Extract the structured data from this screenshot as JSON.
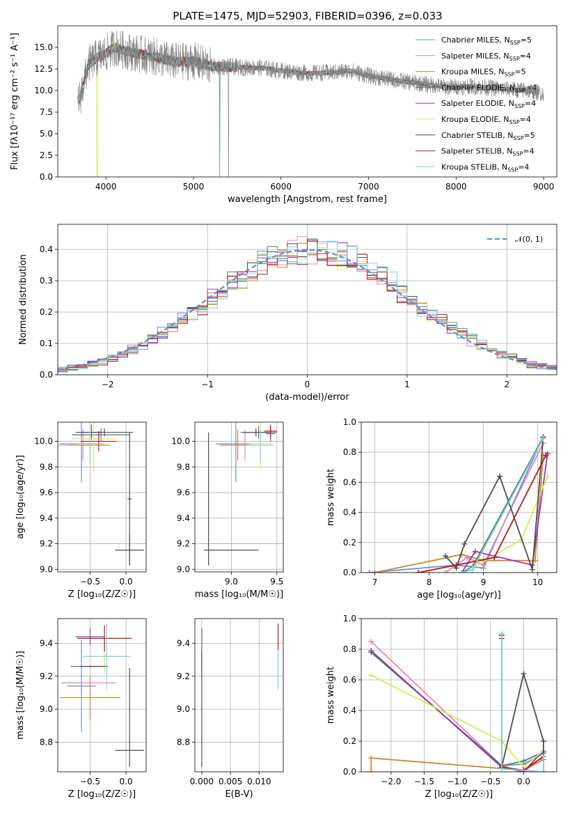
{
  "figure": {
    "title": "PLATE=1475, MJD=52903, FIBERID=0396, z=0.033"
  },
  "colors": {
    "Chabrier MILES": "#6a8fd8",
    "Salpeter MILES": "#e984b4",
    "Kroupa MILES": "#d8812d",
    "Chabrier ELODIE": "#4b7f6a",
    "Salpeter ELODIE": "#9a32b4",
    "Kroupa ELODIE": "#d4ec5a",
    "Chabrier STELIB": "#4d4d4d",
    "Salpeter STELIB": "#b41a1a",
    "Kroupa STELIB": "#7fd6de",
    "data": "#808080",
    "normal": "#5b8fd6"
  },
  "chart_data": [
    {
      "id": "spectrum",
      "type": "line",
      "xlabel": "wavelength [Angstrom, rest frame]",
      "ylabel": "Flux [fλ10⁻¹⁷ erg cm⁻² s⁻¹ A⁻¹]",
      "xlim": [
        3450,
        9150
      ],
      "ylim": [
        0,
        17.5
      ],
      "xticks": [
        4000,
        5000,
        6000,
        7000,
        8000,
        9000
      ],
      "yticks": [
        0.0,
        2.5,
        5.0,
        7.5,
        10.0,
        12.5,
        15.0
      ],
      "ytick_labels": [
        "0.0",
        "2.5",
        "5.0",
        "7.5",
        "10.0",
        "12.5",
        "15.0"
      ],
      "legend_position": "top-right",
      "series": [
        {
          "name": "Chabrier MILES, N",
          "sub": "SSP",
          "suffix": "=5",
          "key": "Chabrier MILES"
        },
        {
          "name": "Salpeter MILES, N",
          "sub": "SSP",
          "suffix": "=4",
          "key": "Salpeter MILES"
        },
        {
          "name": "Kroupa MILES, N",
          "sub": "SSP",
          "suffix": "=5",
          "key": "Kroupa MILES"
        },
        {
          "name": "Chabrier ELODIE, N",
          "sub": "SSP",
          "suffix": "=4",
          "key": "Chabrier ELODIE"
        },
        {
          "name": "Salpeter ELODIE, N",
          "sub": "SSP",
          "suffix": "=4",
          "key": "Salpeter ELODIE"
        },
        {
          "name": "Kroupa ELODIE, N",
          "sub": "SSP",
          "suffix": "=4",
          "key": "Kroupa ELODIE"
        },
        {
          "name": "Chabrier STELIB, N",
          "sub": "SSP",
          "suffix": "=5",
          "key": "Chabrier STELIB"
        },
        {
          "name": "Salpeter STELIB, N",
          "sub": "SSP",
          "suffix": "=4",
          "key": "Salpeter STELIB"
        },
        {
          "name": "Kroupa STELIB, N",
          "sub": "SSP",
          "suffix": "=4",
          "key": "Kroupa STELIB"
        }
      ],
      "continuum": {
        "x": [
          3700,
          3800,
          3900,
          4000,
          4100,
          4300,
          4500,
          4800,
          5000,
          5200,
          5500,
          5800,
          6000,
          6300,
          6600,
          6800,
          7000,
          7300,
          7600,
          7900,
          8200,
          8500,
          8800,
          9000
        ],
        "y": [
          9.0,
          13.0,
          13.8,
          14.3,
          15.0,
          14.4,
          14.0,
          13.3,
          13.4,
          12.8,
          12.7,
          12.6,
          12.3,
          12.0,
          12.1,
          12.3,
          11.7,
          11.2,
          10.8,
          10.4,
          10.5,
          10.2,
          10.0,
          9.7
        ]
      }
    },
    {
      "id": "residuals",
      "type": "histogram",
      "xlabel": "(data-model)/error",
      "ylabel": "Normed distribution",
      "xlim": [
        -2.5,
        2.5
      ],
      "ylim": [
        0,
        0.48
      ],
      "xticks": [
        -2,
        -1,
        0,
        1,
        2
      ],
      "xtick_labels": [
        "−2",
        "−1",
        "0",
        "1",
        "2"
      ],
      "yticks": [
        0.0,
        0.1,
        0.2,
        0.3,
        0.4
      ],
      "ytick_labels": [
        "0.0",
        "0.1",
        "0.2",
        "0.3",
        "0.4"
      ],
      "bin_width": 0.1,
      "legend_position": "top-right",
      "normal_label": "𝒩(0, 1)"
    },
    {
      "id": "age-vs-Z",
      "type": "errorbar",
      "xlabel": "Z [log₁₀(Z/Z☉)]",
      "ylabel": "age  [log₁₀(age/yr)]",
      "xlim": [
        -0.95,
        0.28
      ],
      "ylim": [
        8.98,
        10.15
      ],
      "xticks": [
        -0.5,
        0.0
      ],
      "xtick_labels": [
        "−0.5",
        "0.0"
      ],
      "yticks": [
        9.0,
        9.2,
        9.4,
        9.6,
        9.8,
        10.0
      ],
      "ytick_labels": [
        "9.0",
        "9.2",
        "9.4",
        "9.6",
        "9.8",
        "10.0"
      ],
      "points": [
        {
          "key": "Chabrier MILES",
          "x": -0.62,
          "xerr": 0.3,
          "y": 9.98,
          "yerr": 0.3
        },
        {
          "key": "Salpeter MILES",
          "x": -0.6,
          "xerr": 0.35,
          "y": 9.97,
          "yerr": 0.12
        },
        {
          "key": "Kroupa MILES",
          "x": -0.5,
          "xerr": 0.28,
          "y": 9.97,
          "yerr": 0.12
        },
        {
          "key": "Chabrier ELODIE",
          "x": -0.35,
          "xerr": 0.4,
          "y": 10.05,
          "yerr": 0.05
        },
        {
          "key": "Salpeter ELODIE",
          "x": -0.48,
          "xerr": 0.15,
          "y": 10.07,
          "yerr": 0.06
        },
        {
          "key": "Kroupa ELODIE",
          "x": -0.45,
          "xerr": 0.3,
          "y": 10.02,
          "yerr": 0.25
        },
        {
          "key": "Chabrier STELIB",
          "x": -0.3,
          "xerr": 0.4,
          "y": 10.07,
          "yerr": 0.03
        },
        {
          "key": "Salpeter STELIB",
          "x": -0.38,
          "xerr": 0.25,
          "y": 10.0,
          "yerr": 0.08
        },
        {
          "key": "Kroupa STELIB",
          "x": -0.5,
          "xerr": 0.2,
          "y": 9.98,
          "yerr": 0.18
        },
        {
          "key": "Chabrier STELIB",
          "x": 0.05,
          "xerr": 0.2,
          "y": 9.15,
          "yerr": 0.12
        },
        {
          "key": "Chabrier STELIB",
          "x": 0.05,
          "xerr": 0.03,
          "y": 9.55,
          "yerr": 0.52
        }
      ]
    },
    {
      "id": "age-vs-mass",
      "type": "errorbar",
      "xlabel": "mass [log₁₀(M/M☉)]",
      "xlim": [
        8.6,
        9.57
      ],
      "ylim": [
        8.98,
        10.15
      ],
      "xticks": [
        9.0,
        9.5
      ],
      "xtick_labels": [
        "9.0",
        "9.5"
      ],
      "yticks": [
        9.0,
        9.2,
        9.4,
        9.6,
        9.8,
        10.0
      ],
      "ytick_labels": [
        "9.0",
        "9.2",
        "9.4",
        "9.6",
        "9.8",
        "10.0"
      ],
      "points": [
        {
          "key": "Chabrier MILES",
          "x": 9.05,
          "xerr": 0.22,
          "y": 9.98,
          "yerr": 0.3
        },
        {
          "key": "Salpeter MILES",
          "x": 9.15,
          "xerr": 0.25,
          "y": 9.97,
          "yerr": 0.12
        },
        {
          "key": "Kroupa MILES",
          "x": 9.07,
          "xerr": 0.2,
          "y": 9.97,
          "yerr": 0.12
        },
        {
          "key": "Chabrier ELODIE",
          "x": 9.3,
          "xerr": 0.2,
          "y": 10.07,
          "yerr": 0.05
        },
        {
          "key": "Salpeter ELODIE",
          "x": 9.43,
          "xerr": 0.05,
          "y": 10.06,
          "yerr": 0.06
        },
        {
          "key": "Kroupa ELODIE",
          "x": 9.32,
          "xerr": 0.12,
          "y": 9.98,
          "yerr": 0.2
        },
        {
          "key": "Chabrier STELIB",
          "x": 9.27,
          "xerr": 0.15,
          "y": 10.07,
          "yerr": 0.03
        },
        {
          "key": "Salpeter STELIB",
          "x": 9.43,
          "xerr": 0.07,
          "y": 10.08,
          "yerr": 0.05
        },
        {
          "key": "Kroupa STELIB",
          "x": 9.32,
          "xerr": 0.15,
          "y": 9.97,
          "yerr": 0.12
        },
        {
          "key": "Chabrier STELIB",
          "x": 9.0,
          "xerr": 0.3,
          "y": 9.15,
          "yerr": 0.0
        },
        {
          "key": "Chabrier STELIB",
          "x": 8.75,
          "xerr": 0.0,
          "y": 9.55,
          "yerr": 0.52
        }
      ]
    },
    {
      "id": "weight-vs-age",
      "type": "line",
      "xlabel": "age  [log₁₀(age/yr)]",
      "ylabel": "mass weight",
      "xlim": [
        6.75,
        10.35
      ],
      "ylim": [
        0,
        1.0
      ],
      "xticks": [
        7,
        8,
        9,
        10
      ],
      "xtick_labels": [
        "7",
        "8",
        "9",
        "10"
      ],
      "yticks": [
        0.0,
        0.2,
        0.4,
        0.6,
        0.8,
        1.0
      ],
      "ytick_labels": [
        "0.0",
        "0.2",
        "0.4",
        "0.6",
        "0.8",
        "1.0"
      ],
      "series": [
        {
          "key": "Chabrier MILES",
          "x": [
            6.9,
            8.5,
            9.0,
            10.1
          ],
          "y": [
            0.0,
            0.05,
            0.03,
            0.9
          ]
        },
        {
          "key": "Salpeter MILES",
          "x": [
            8.3,
            8.7,
            9.0,
            10.1
          ],
          "y": [
            0.0,
            0.1,
            0.05,
            0.86
          ]
        },
        {
          "key": "Kroupa MILES",
          "x": [
            7.0,
            8.6,
            9.0,
            9.95,
            10.1
          ],
          "y": [
            0.0,
            0.12,
            0.08,
            0.08,
            0.78
          ]
        },
        {
          "key": "Chabrier ELODIE",
          "x": [
            8.6,
            8.8,
            10.1
          ],
          "y": [
            0.0,
            0.04,
            0.9
          ]
        },
        {
          "key": "Salpeter ELODIE",
          "x": [
            8.6,
            8.85,
            9.9,
            10.18
          ],
          "y": [
            0.0,
            0.14,
            0.05,
            0.79
          ]
        },
        {
          "key": "Kroupa ELODIE",
          "x": [
            8.8,
            9.7,
            10.18
          ],
          "y": [
            0.03,
            0.22,
            0.64
          ]
        },
        {
          "key": "Chabrier STELIB",
          "x": [
            8.3,
            8.5,
            8.65,
            9.3,
            9.9,
            10.1
          ],
          "y": [
            0.11,
            0.03,
            0.19,
            0.64,
            0.02,
            0.9
          ]
        },
        {
          "key": "Salpeter STELIB",
          "x": [
            7.8,
            8.5,
            9.2,
            10.15
          ],
          "y": [
            0.0,
            0.05,
            0.1,
            0.78
          ]
        },
        {
          "key": "Kroupa STELIB",
          "x": [
            8.6,
            8.8,
            10.1
          ],
          "y": [
            0.0,
            0.02,
            0.89
          ]
        }
      ]
    },
    {
      "id": "mass-vs-Z",
      "type": "errorbar",
      "xlabel": "Z [log₁₀(Z/Z☉)]",
      "ylabel": "mass [log₁₀(M/M☉)]",
      "xlim": [
        -0.95,
        0.28
      ],
      "ylim": [
        8.62,
        9.55
      ],
      "xticks": [
        -0.5,
        0.0
      ],
      "xtick_labels": [
        "−0.5",
        "0.0"
      ],
      "yticks": [
        8.8,
        9.0,
        9.2,
        9.4
      ],
      "ytick_labels": [
        "8.8",
        "9.0",
        "9.2",
        "9.4"
      ],
      "points": [
        {
          "key": "Chabrier MILES",
          "x": -0.62,
          "xerr": 0.2,
          "y": 9.14,
          "yerr": 0.28
        },
        {
          "key": "Salpeter MILES",
          "x": -0.52,
          "xerr": 0.38,
          "y": 9.16,
          "yerr": 0.0
        },
        {
          "key": "Kroupa MILES",
          "x": -0.5,
          "xerr": 0.42,
          "y": 9.07,
          "yerr": 0.13
        },
        {
          "key": "Chabrier ELODIE",
          "x": -0.55,
          "xerr": 0.22,
          "y": 9.26,
          "yerr": 0.0
        },
        {
          "key": "Salpeter ELODIE",
          "x": -0.5,
          "xerr": 0.2,
          "y": 9.44,
          "yerr": 0.05
        },
        {
          "key": "Kroupa ELODIE",
          "x": -0.3,
          "xerr": 0.25,
          "y": 9.32,
          "yerr": 0.1
        },
        {
          "key": "Chabrier STELIB",
          "x": -0.45,
          "xerr": 0.2,
          "y": 9.26,
          "yerr": 0.0
        },
        {
          "key": "Salpeter STELIB",
          "x": -0.3,
          "xerr": 0.38,
          "y": 9.43,
          "yerr": 0.08
        },
        {
          "key": "Kroupa STELIB",
          "x": -0.27,
          "xerr": 0.33,
          "y": 9.32,
          "yerr": 0.2
        },
        {
          "key": "Chabrier STELIB",
          "x": 0.05,
          "xerr": 0.2,
          "y": 8.75,
          "yerr": 0.0
        },
        {
          "key": "Chabrier STELIB",
          "x": 0.05,
          "xerr": 0.0,
          "y": 8.95,
          "yerr": 0.3
        }
      ]
    },
    {
      "id": "mass-vs-EBV",
      "type": "errorbar",
      "xlabel": "E(B-V)",
      "xlim": [
        -0.0012,
        0.0142
      ],
      "ylim": [
        8.62,
        9.55
      ],
      "xticks": [
        0.0,
        0.005,
        0.01
      ],
      "xtick_labels": [
        "0.000",
        "0.005",
        "0.010"
      ],
      "yticks": [
        8.8,
        9.0,
        9.2,
        9.4
      ],
      "ytick_labels": [
        "8.8",
        "9.0",
        "9.2",
        "9.4"
      ],
      "points": [
        {
          "key": "Salpeter ELODIE",
          "x": 0.0,
          "xerr": 0,
          "y": 9.37,
          "yerr": 0.12
        },
        {
          "key": "Kroupa ELODIE",
          "x": 0.0,
          "xerr": 0,
          "y": 9.3,
          "yerr": 0.05
        },
        {
          "key": "Chabrier STELIB",
          "x": 0.0,
          "xerr": 0,
          "y": 9.0,
          "yerr": 0.35
        },
        {
          "key": "Salpeter STELIB",
          "x": 0.0133,
          "xerr": 0,
          "y": 9.44,
          "yerr": 0.08
        },
        {
          "key": "Kroupa STELIB",
          "x": 0.0133,
          "xerr": 0,
          "y": 9.24,
          "yerr": 0.12
        }
      ]
    },
    {
      "id": "weight-vs-Z",
      "type": "line",
      "xlabel": "Z [log₁₀(Z/Z☉)]",
      "ylabel": "mass weight",
      "xlim": [
        -2.45,
        0.5
      ],
      "ylim": [
        0,
        1.0
      ],
      "xticks": [
        -2.0,
        -1.5,
        -1.0,
        -0.5,
        0.0
      ],
      "xtick_labels": [
        "−2.0",
        "−1.5",
        "−1.0",
        "−0.5",
        "0.0"
      ],
      "yticks": [
        0.0,
        0.2,
        0.4,
        0.6,
        0.8,
        1.0
      ],
      "ytick_labels": [
        "0.0",
        "0.2",
        "0.4",
        "0.6",
        "0.8",
        "1.0"
      ],
      "series": [
        {
          "key": "Chabrier MILES",
          "x": [
            -2.3,
            -0.33,
            0.0,
            0.3
          ],
          "y": [
            0.78,
            0.04,
            0.05,
            0.12
          ]
        },
        {
          "key": "Salpeter MILES",
          "x": [
            -2.3,
            -0.33,
            0.0,
            0.3
          ],
          "y": [
            0.85,
            0.04,
            0.0,
            0.1
          ]
        },
        {
          "key": "Kroupa MILES",
          "x": [
            -2.3,
            -2.3,
            0.0,
            0.3
          ],
          "y": [
            0.0,
            0.09,
            0.01,
            0.08
          ]
        },
        {
          "key": "Chabrier ELODIE",
          "x": [
            -2.3,
            -0.33,
            0.0,
            0.3
          ],
          "y": [
            0.78,
            0.04,
            0.07,
            0.13
          ]
        },
        {
          "key": "Salpeter ELODIE",
          "x": [
            -2.3,
            -0.33,
            0.0,
            0.3
          ],
          "y": [
            0.79,
            0.03,
            0.0,
            0.14
          ]
        },
        {
          "key": "Kroupa ELODIE",
          "x": [
            -2.3,
            -0.33,
            0.0,
            0.3
          ],
          "y": [
            0.63,
            0.2,
            0.03,
            0.14
          ]
        },
        {
          "key": "Chabrier STELIB",
          "x": [
            -0.33,
            -0.33,
            0.0,
            0.3,
            0.3
          ],
          "y": [
            0.89,
            0.03,
            0.64,
            0.2,
            0.0
          ]
        },
        {
          "key": "Salpeter STELIB",
          "x": [
            -0.33,
            -0.33,
            0.0,
            0.3
          ],
          "y": [
            0.87,
            0.03,
            0.01,
            0.1
          ]
        },
        {
          "key": "Kroupa STELIB",
          "x": [
            -0.33,
            -0.33,
            0.3,
            0.3
          ],
          "y": [
            0.9,
            0.02,
            0.0,
            0.1
          ]
        }
      ]
    }
  ]
}
